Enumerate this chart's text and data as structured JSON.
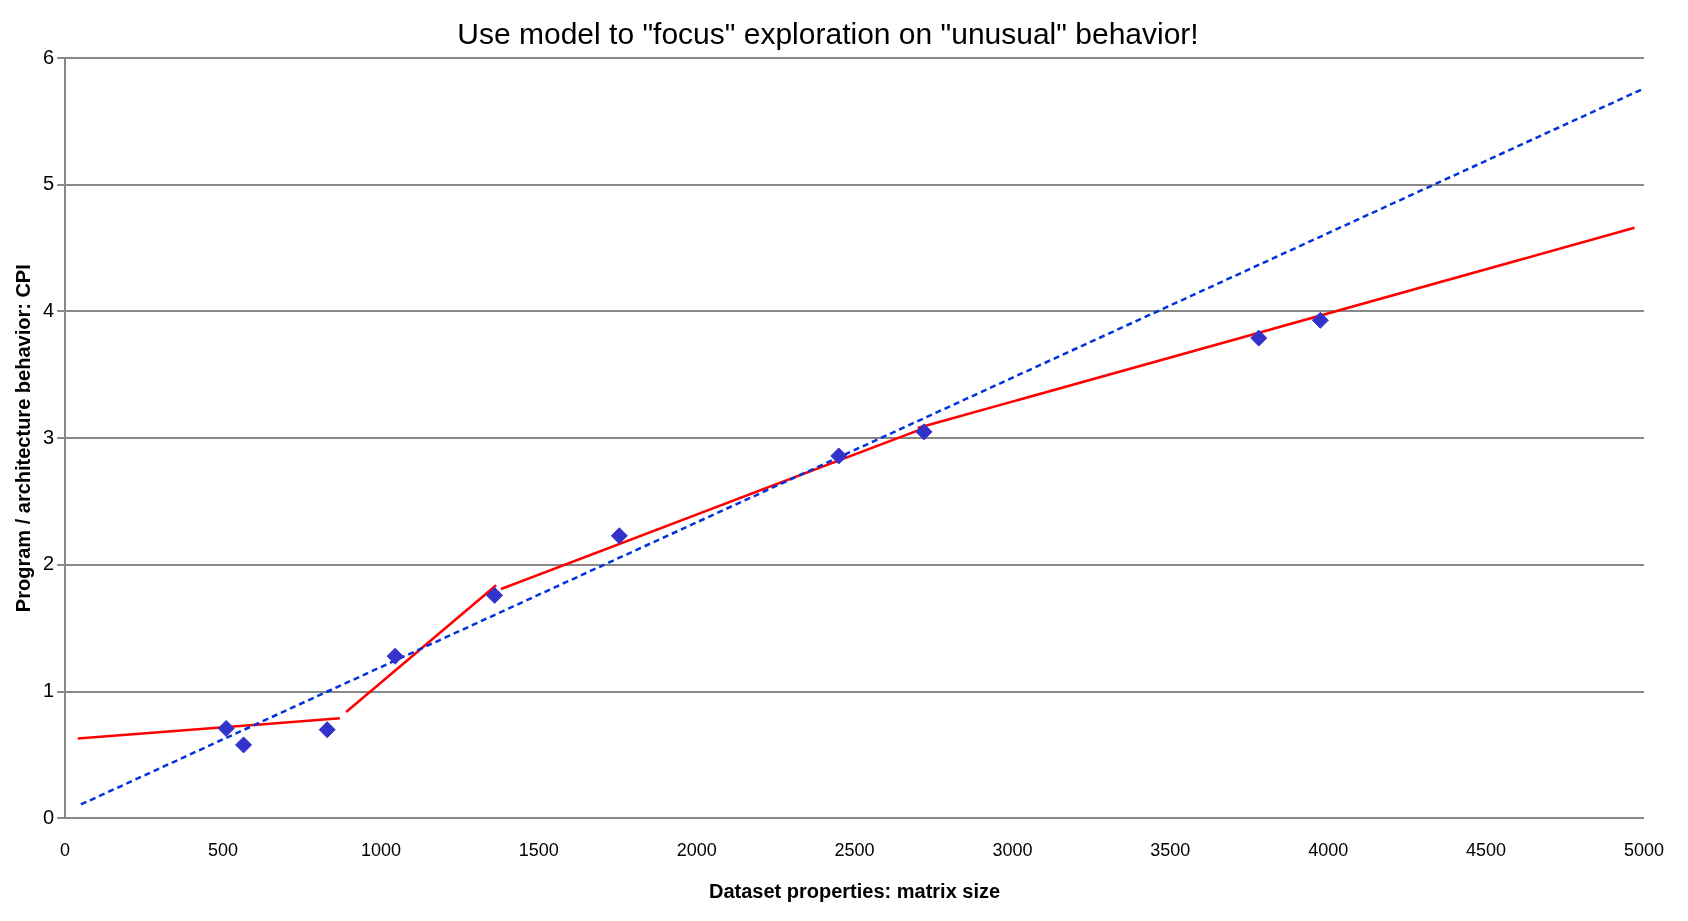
{
  "chart_data": {
    "type": "scatter",
    "title": "Use model to \"focus\" exploration on \"unusual\" behavior!",
    "xlabel": "Dataset properties: matrix size",
    "ylabel": "Program / architecture behavior: CPI",
    "xlim": [
      0,
      5000
    ],
    "xticks": [
      0,
      500,
      1000,
      1500,
      2000,
      2500,
      3000,
      3500,
      4000,
      4500,
      5000
    ],
    "ylim": [
      0,
      6
    ],
    "yticks": [
      0,
      1,
      2,
      3,
      4,
      5,
      6
    ],
    "grid": "y",
    "legend": false,
    "series": [
      {
        "color": "#3333cc",
        "marker": "diamond",
        "x": [
          510,
          565,
          830,
          1045,
          1360,
          1755,
          2450,
          2720,
          3780,
          3975
        ],
        "values": [
          0.71,
          0.58,
          0.7,
          1.28,
          1.76,
          2.23,
          2.86,
          3.05,
          3.79,
          3.93
        ]
      },
      {
        "type": "line",
        "color": "#0033dd",
        "line_style": "dashed",
        "marker": "none",
        "x": [
          50,
          5000
        ],
        "values": [
          0.11,
          5.76
        ]
      },
      {
        "type": "line",
        "color": "#ff0000",
        "line_style": "solid",
        "marker": "none",
        "x": [
          40,
          870
        ],
        "values": [
          0.63,
          0.79
        ]
      },
      {
        "type": "line",
        "color": "#ff0000",
        "line_style": "solid",
        "marker": "none",
        "x": [
          890,
          1365
        ],
        "values": [
          0.84,
          1.84
        ]
      },
      {
        "type": "line",
        "color": "#ff0000",
        "line_style": "solid",
        "marker": "none",
        "x": [
          1380,
          2720
        ],
        "values": [
          1.81,
          3.08
        ]
      },
      {
        "type": "line",
        "color": "#ff0000",
        "line_style": "solid",
        "marker": "none",
        "x": [
          2700,
          4970
        ],
        "values": [
          3.08,
          4.66
        ]
      }
    ]
  }
}
